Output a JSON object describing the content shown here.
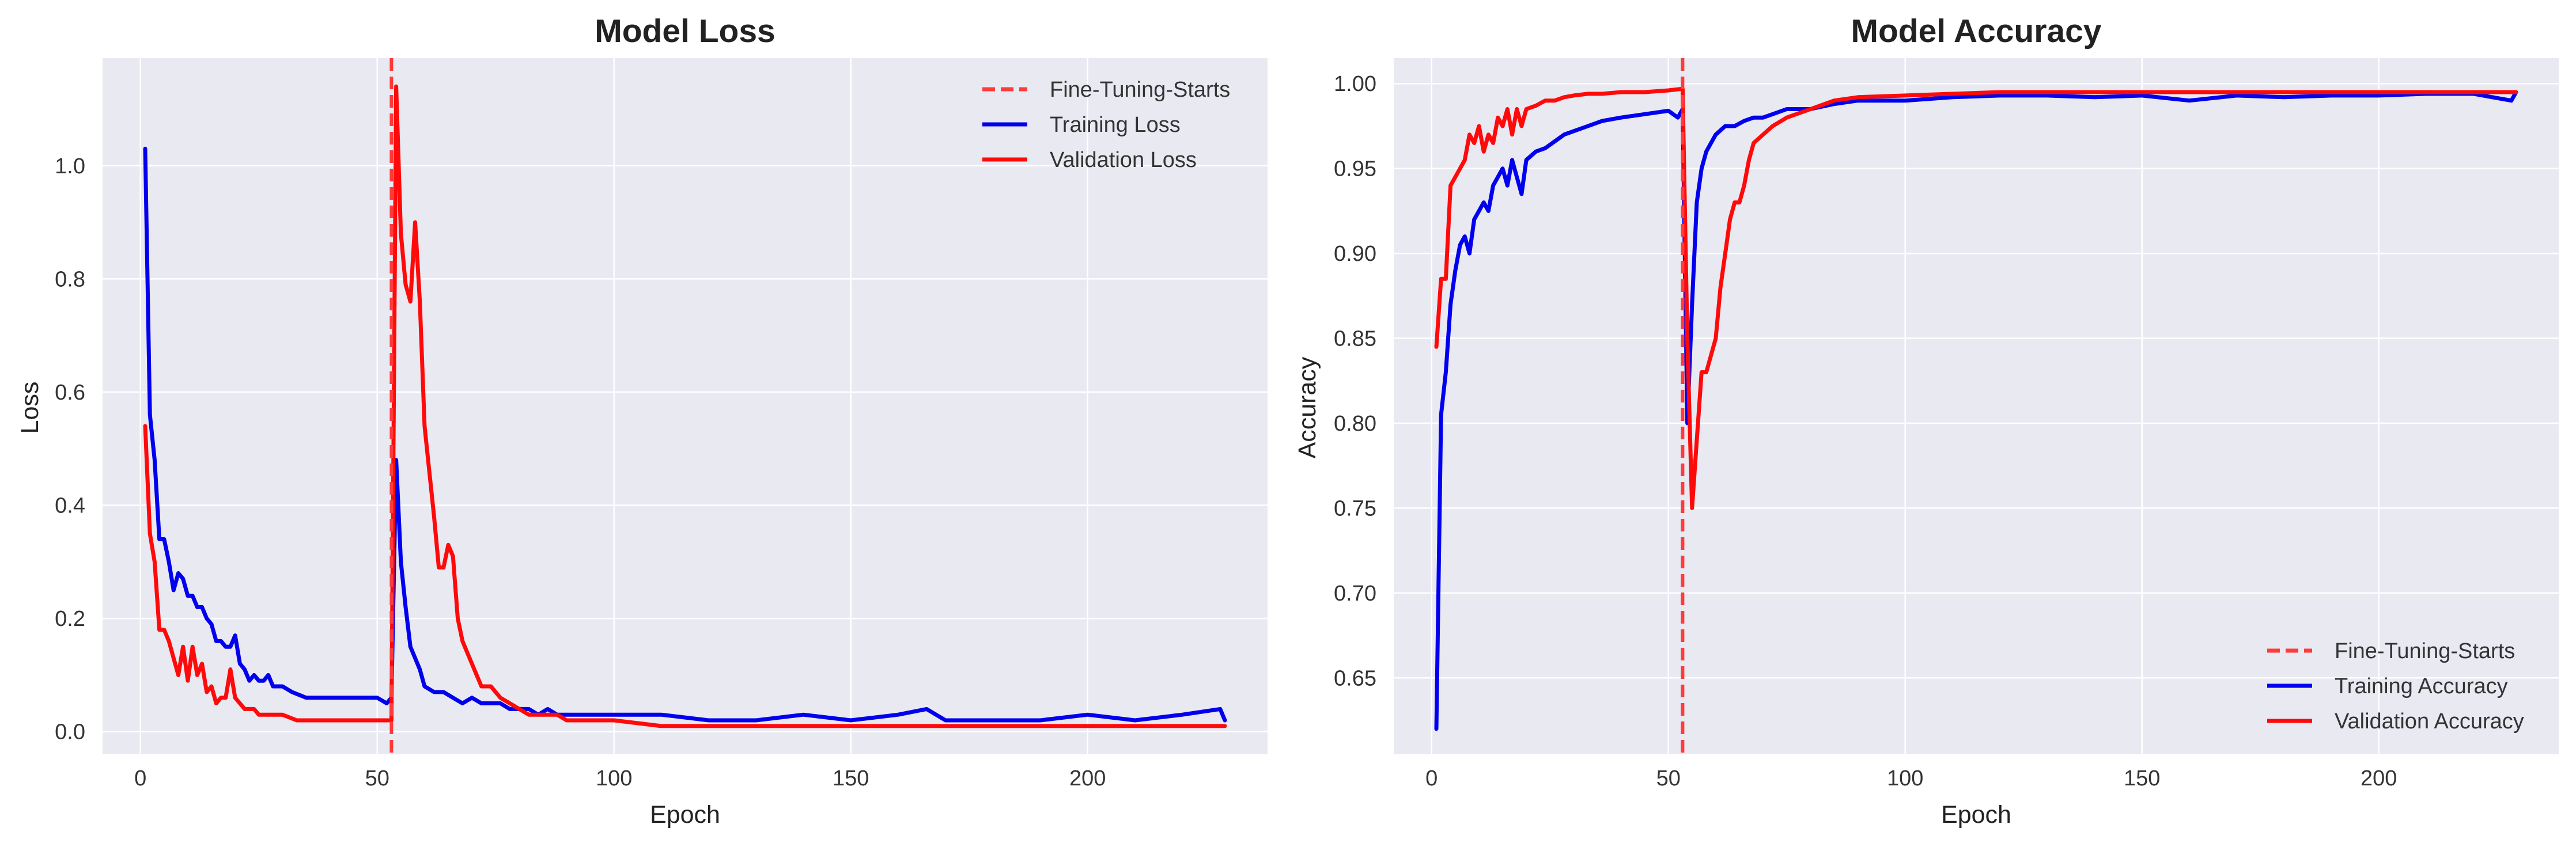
{
  "chart_data": [
    {
      "type": "line",
      "title": "Model Loss",
      "xlabel": "Epoch",
      "ylabel": "Loss",
      "xlim": [
        -8,
        238
      ],
      "ylim": [
        -0.04,
        1.19
      ],
      "xticks": [
        0,
        50,
        100,
        150,
        200
      ],
      "yticks": [
        0.0,
        0.2,
        0.4,
        0.6,
        0.8,
        1.0
      ],
      "ytick_labels": [
        "0.0",
        "0.2",
        "0.4",
        "0.6",
        "0.8",
        "1.0"
      ],
      "grid": true,
      "legend_position": "upper right",
      "vline": {
        "x": 53,
        "label": "Fine-Tuning-Starts",
        "color": "#ff3b3b",
        "style": "dashed"
      },
      "series": [
        {
          "name": "Training Loss",
          "color": "#0000ee",
          "x": [
            1,
            2,
            3,
            4,
            5,
            6,
            7,
            8,
            9,
            10,
            11,
            12,
            13,
            14,
            15,
            16,
            17,
            18,
            19,
            20,
            21,
            22,
            23,
            24,
            25,
            26,
            27,
            28,
            30,
            32,
            35,
            38,
            41,
            44,
            47,
            50,
            52,
            53,
            54,
            55,
            56,
            57,
            58,
            59,
            60,
            62,
            64,
            66,
            68,
            70,
            72,
            74,
            76,
            78,
            80,
            82,
            84,
            86,
            88,
            90,
            95,
            100,
            110,
            120,
            130,
            140,
            150,
            160,
            166,
            170,
            180,
            190,
            200,
            210,
            220,
            228,
            229
          ],
          "y": [
            1.03,
            0.56,
            0.48,
            0.34,
            0.34,
            0.3,
            0.25,
            0.28,
            0.27,
            0.24,
            0.24,
            0.22,
            0.22,
            0.2,
            0.19,
            0.16,
            0.16,
            0.15,
            0.15,
            0.17,
            0.12,
            0.11,
            0.09,
            0.1,
            0.09,
            0.09,
            0.1,
            0.08,
            0.08,
            0.07,
            0.06,
            0.06,
            0.06,
            0.06,
            0.06,
            0.06,
            0.05,
            0.06,
            0.48,
            0.3,
            0.22,
            0.15,
            0.13,
            0.11,
            0.08,
            0.07,
            0.07,
            0.06,
            0.05,
            0.06,
            0.05,
            0.05,
            0.05,
            0.04,
            0.04,
            0.04,
            0.03,
            0.04,
            0.03,
            0.03,
            0.03,
            0.03,
            0.03,
            0.02,
            0.02,
            0.03,
            0.02,
            0.03,
            0.04,
            0.02,
            0.02,
            0.02,
            0.03,
            0.02,
            0.03,
            0.04,
            0.02
          ]
        },
        {
          "name": "Validation Loss",
          "color": "#ff0a0a",
          "x": [
            1,
            2,
            3,
            4,
            5,
            6,
            7,
            8,
            9,
            10,
            11,
            12,
            13,
            14,
            15,
            16,
            17,
            18,
            19,
            20,
            21,
            22,
            23,
            24,
            25,
            27,
            30,
            33,
            36,
            40,
            45,
            50,
            53,
            54,
            55,
            56,
            57,
            58,
            59,
            60,
            61,
            62,
            63,
            64,
            65,
            66,
            67,
            68,
            69,
            70,
            71,
            72,
            73,
            74,
            75,
            76,
            78,
            80,
            82,
            84,
            86,
            88,
            90,
            95,
            100,
            110,
            120,
            140,
            160,
            180,
            200,
            229
          ],
          "y": [
            0.54,
            0.35,
            0.3,
            0.18,
            0.18,
            0.16,
            0.13,
            0.1,
            0.15,
            0.09,
            0.15,
            0.1,
            0.12,
            0.07,
            0.08,
            0.05,
            0.06,
            0.06,
            0.11,
            0.06,
            0.05,
            0.04,
            0.04,
            0.04,
            0.03,
            0.03,
            0.03,
            0.02,
            0.02,
            0.02,
            0.02,
            0.02,
            0.02,
            1.14,
            0.88,
            0.79,
            0.76,
            0.9,
            0.76,
            0.54,
            0.46,
            0.38,
            0.29,
            0.29,
            0.33,
            0.31,
            0.2,
            0.16,
            0.14,
            0.12,
            0.1,
            0.08,
            0.08,
            0.08,
            0.07,
            0.06,
            0.05,
            0.04,
            0.03,
            0.03,
            0.03,
            0.03,
            0.02,
            0.02,
            0.02,
            0.01,
            0.01,
            0.01,
            0.01,
            0.01,
            0.01,
            0.01
          ]
        }
      ]
    },
    {
      "type": "line",
      "title": "Model Accuracy",
      "xlabel": "Epoch",
      "ylabel": "Accuracy",
      "xlim": [
        -8,
        238
      ],
      "ylim": [
        0.605,
        1.015
      ],
      "xticks": [
        0,
        50,
        100,
        150,
        200
      ],
      "yticks": [
        0.65,
        0.7,
        0.75,
        0.8,
        0.85,
        0.9,
        0.95,
        1.0
      ],
      "ytick_labels": [
        "0.65",
        "0.70",
        "0.75",
        "0.80",
        "0.85",
        "0.90",
        "0.95",
        "1.00"
      ],
      "grid": true,
      "legend_position": "lower right",
      "vline": {
        "x": 53,
        "label": "Fine-Tuning-Starts",
        "color": "#ff3b3b",
        "style": "dashed"
      },
      "series": [
        {
          "name": "Training Accuracy",
          "color": "#0000ee",
          "x": [
            1,
            2,
            3,
            4,
            5,
            6,
            7,
            8,
            9,
            10,
            11,
            12,
            13,
            14,
            15,
            16,
            17,
            18,
            19,
            20,
            22,
            24,
            26,
            28,
            30,
            33,
            36,
            40,
            45,
            50,
            52,
            53,
            54,
            55,
            56,
            57,
            58,
            60,
            62,
            64,
            66,
            68,
            70,
            75,
            80,
            85,
            90,
            100,
            110,
            120,
            130,
            140,
            150,
            160,
            170,
            180,
            190,
            200,
            210,
            220,
            228,
            229
          ],
          "y": [
            0.62,
            0.805,
            0.83,
            0.87,
            0.89,
            0.905,
            0.91,
            0.9,
            0.92,
            0.925,
            0.93,
            0.925,
            0.94,
            0.945,
            0.95,
            0.94,
            0.955,
            0.945,
            0.935,
            0.955,
            0.96,
            0.962,
            0.966,
            0.97,
            0.972,
            0.975,
            0.978,
            0.98,
            0.982,
            0.984,
            0.98,
            0.985,
            0.8,
            0.87,
            0.93,
            0.95,
            0.96,
            0.97,
            0.975,
            0.975,
            0.978,
            0.98,
            0.98,
            0.985,
            0.985,
            0.988,
            0.99,
            0.99,
            0.992,
            0.993,
            0.993,
            0.992,
            0.993,
            0.99,
            0.993,
            0.992,
            0.993,
            0.993,
            0.994,
            0.994,
            0.99,
            0.995
          ]
        },
        {
          "name": "Validation Accuracy",
          "color": "#ff0a0a",
          "x": [
            1,
            2,
            3,
            4,
            5,
            6,
            7,
            8,
            9,
            10,
            11,
            12,
            13,
            14,
            15,
            16,
            17,
            18,
            19,
            20,
            22,
            24,
            26,
            28,
            30,
            33,
            36,
            40,
            45,
            50,
            53,
            54,
            55,
            56,
            57,
            58,
            59,
            60,
            61,
            62,
            63,
            64,
            65,
            66,
            67,
            68,
            70,
            72,
            75,
            80,
            85,
            90,
            100,
            110,
            120,
            130,
            140,
            150,
            160,
            180,
            200,
            229
          ],
          "y": [
            0.845,
            0.885,
            0.885,
            0.94,
            0.945,
            0.95,
            0.955,
            0.97,
            0.965,
            0.975,
            0.96,
            0.97,
            0.965,
            0.98,
            0.975,
            0.985,
            0.97,
            0.985,
            0.975,
            0.985,
            0.987,
            0.99,
            0.99,
            0.992,
            0.993,
            0.994,
            0.994,
            0.995,
            0.995,
            0.996,
            0.997,
            0.85,
            0.75,
            0.79,
            0.83,
            0.83,
            0.84,
            0.85,
            0.88,
            0.9,
            0.92,
            0.93,
            0.93,
            0.94,
            0.955,
            0.965,
            0.97,
            0.975,
            0.98,
            0.985,
            0.99,
            0.992,
            0.993,
            0.994,
            0.995,
            0.995,
            0.995,
            0.995,
            0.995,
            0.995,
            0.995,
            0.995
          ]
        }
      ]
    }
  ]
}
